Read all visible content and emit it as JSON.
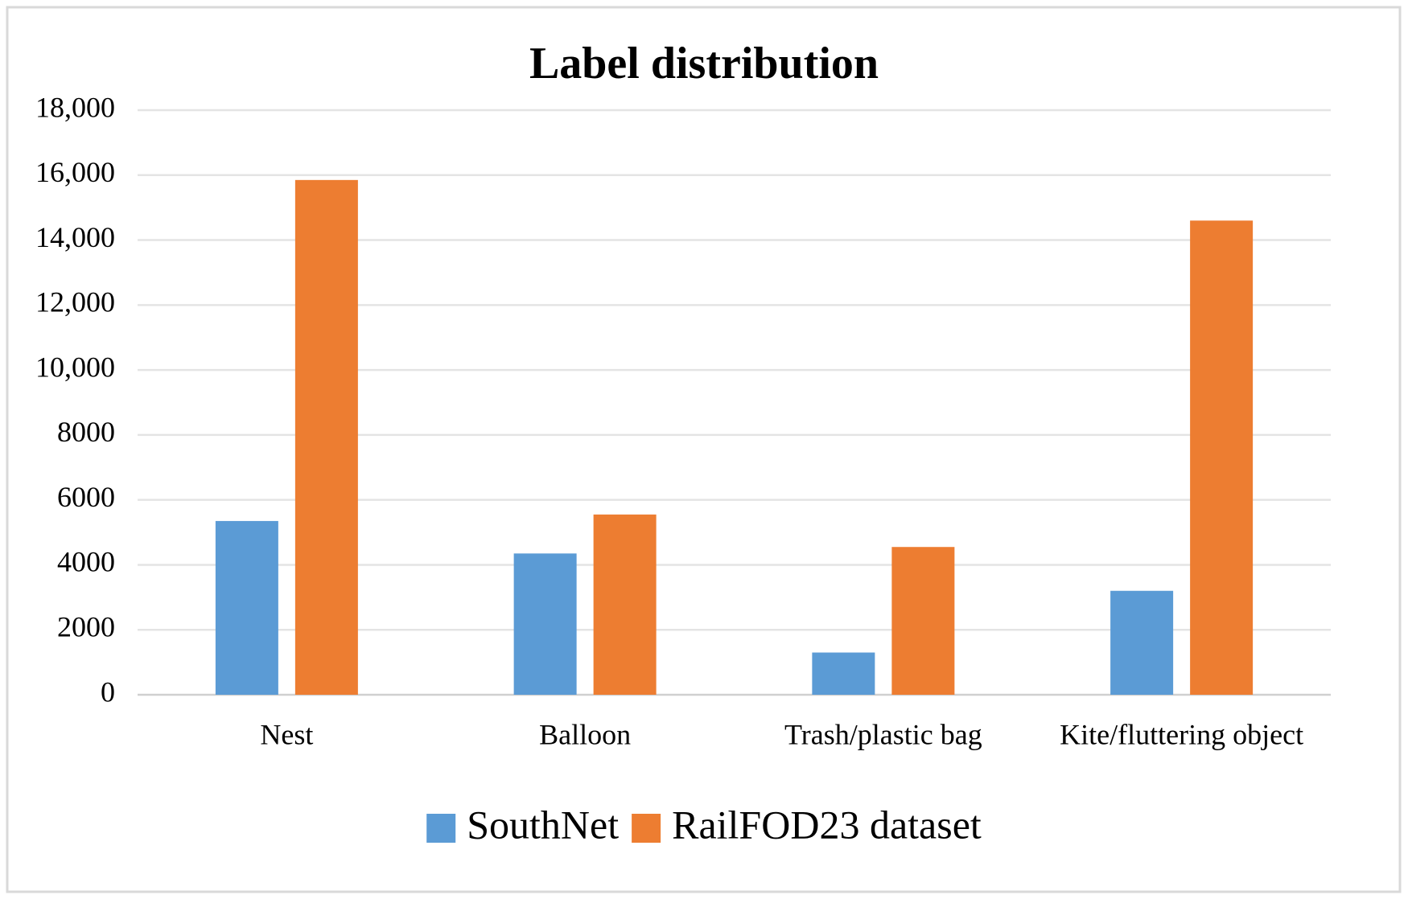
{
  "chart_data": {
    "type": "bar",
    "title": "Label distribution",
    "categories": [
      "Nest",
      "Balloon",
      "Trash/plastic bag",
      "Kite/fluttering object"
    ],
    "series": [
      {
        "name": "SouthNet",
        "color": "#5b9bd5",
        "values": [
          5350,
          4350,
          1300,
          3200
        ]
      },
      {
        "name": "RailFOD23 dataset",
        "color": "#ed7d31",
        "values": [
          15850,
          5550,
          4550,
          14600
        ]
      }
    ],
    "ylim": [
      0,
      18000
    ],
    "yticks": [
      0,
      2000,
      4000,
      6000,
      8000,
      {
        "value": 10000,
        "label": "10,000"
      },
      {
        "value": 12000,
        "label": "12,000"
      },
      {
        "value": 14000,
        "label": "14,000"
      },
      {
        "value": 16000,
        "label": "16,000"
      },
      {
        "value": 18000,
        "label": "18,000"
      }
    ],
    "grid": true,
    "legend": "bottom"
  }
}
